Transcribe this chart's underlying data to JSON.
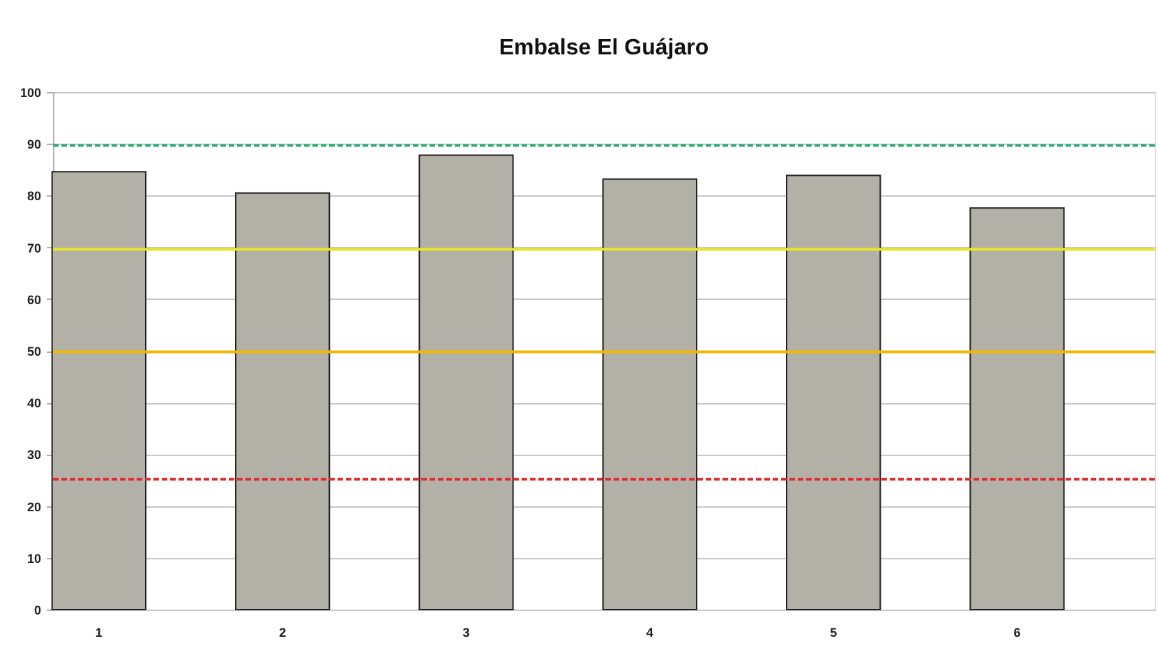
{
  "chart_data": {
    "type": "bar",
    "title": "Embalse El Guájaro",
    "categories": [
      "1",
      "2",
      "3",
      "4",
      "5",
      "6"
    ],
    "values": [
      84.6,
      80.5,
      87.8,
      83.2,
      83.9,
      77.6
    ],
    "color": "#b3b0a8",
    "ylim": [
      0,
      100
    ],
    "yticks": [
      0,
      10,
      20,
      30,
      40,
      50,
      60,
      70,
      80,
      90,
      100
    ],
    "grid": "y",
    "ref_lines": [
      {
        "axis": "y",
        "value": 89.7,
        "color": "#2fae74",
        "line_style": "dashed"
      },
      {
        "axis": "y",
        "value": 69.6,
        "color": "#e6e627",
        "line_style": "solid"
      },
      {
        "axis": "y",
        "value": 49.8,
        "color": "#f2b705",
        "line_style": "solid"
      },
      {
        "axis": "y",
        "value": 25.2,
        "color": "#e52b2b",
        "line_style": "dashed"
      }
    ]
  }
}
